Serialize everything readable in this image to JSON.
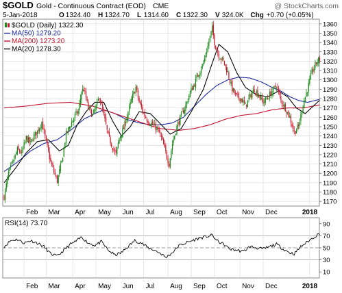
{
  "header": {
    "symbol": "$GOLD",
    "description": "Gold - Continuous Contract (EOD)",
    "exchange": "CME",
    "credit": "@ StockCharts.com",
    "date": "5-Jan-2018",
    "ohlc": [
      {
        "label": "O",
        "value": "1324.40"
      },
      {
        "label": "H",
        "value": "1324.70"
      },
      {
        "label": "L",
        "value": "1314.60"
      },
      {
        "label": "C",
        "value": "1322.30"
      },
      {
        "label": "V",
        "value": "324.0K"
      },
      {
        "label": "Chg",
        "value": "+0.70 (+0.05%)"
      }
    ]
  },
  "legend": [
    {
      "text": "$GOLD (Daily) 1322.30",
      "color": "#000000",
      "kind": "candle"
    },
    {
      "text": "MA(50) 1279.20",
      "color": "#1a2a9a",
      "kind": "line"
    },
    {
      "text": "MA(200) 1273.20",
      "color": "#c0102a",
      "kind": "line"
    },
    {
      "text": "MA(20) 1278.30",
      "color": "#000000",
      "kind": "line"
    }
  ],
  "colors": {
    "up": "#1a8a1a",
    "down": "#c81e2e",
    "ma50": "#1a2a9a",
    "ma200": "#c0102a",
    "ma20": "#000000",
    "rsi": "#000000",
    "grid": "#dcdcdc"
  },
  "chart_data": [
    {
      "type": "candlestick",
      "title": "$GOLD (Daily) 1322.30",
      "ylim": [
        1165,
        1365
      ],
      "y_ticks": [
        1170,
        1180,
        1190,
        1200,
        1210,
        1220,
        1230,
        1240,
        1250,
        1260,
        1270,
        1280,
        1290,
        1300,
        1310,
        1320,
        1330,
        1340,
        1350,
        1360
      ],
      "x_ticks": [
        "Feb",
        "Mar",
        "Apr",
        "May",
        "Jun",
        "Jul",
        "Aug",
        "Sep",
        "Oct",
        "Nov",
        "Dec",
        "2018"
      ],
      "grid": true,
      "legend_position": "top-left",
      "anchors": [
        [
          0,
          1175
        ],
        [
          4,
          1200
        ],
        [
          8,
          1212
        ],
        [
          12,
          1225
        ],
        [
          16,
          1222
        ],
        [
          20,
          1238
        ],
        [
          24,
          1232
        ],
        [
          26,
          1238
        ],
        [
          30,
          1245
        ],
        [
          34,
          1255
        ],
        [
          38,
          1233
        ],
        [
          42,
          1212
        ],
        [
          46,
          1198
        ],
        [
          48,
          1192
        ],
        [
          52,
          1212
        ],
        [
          56,
          1242
        ],
        [
          60,
          1252
        ],
        [
          64,
          1262
        ],
        [
          67,
          1266
        ],
        [
          70,
          1288
        ],
        [
          72,
          1290
        ],
        [
          76,
          1270
        ],
        [
          80,
          1262
        ],
        [
          84,
          1274
        ],
        [
          86,
          1282
        ],
        [
          90,
          1262
        ],
        [
          94,
          1240
        ],
        [
          98,
          1228
        ],
        [
          101,
          1220
        ],
        [
          104,
          1238
        ],
        [
          108,
          1248
        ],
        [
          112,
          1266
        ],
        [
          116,
          1282
        ],
        [
          119,
          1292
        ],
        [
          122,
          1276
        ],
        [
          126,
          1264
        ],
        [
          130,
          1256
        ],
        [
          134,
          1252
        ],
        [
          138,
          1248
        ],
        [
          142,
          1238
        ],
        [
          146,
          1222
        ],
        [
          149,
          1210
        ],
        [
          152,
          1232
        ],
        [
          156,
          1250
        ],
        [
          160,
          1262
        ],
        [
          164,
          1272
        ],
        [
          168,
          1287
        ],
        [
          172,
          1296
        ],
        [
          176,
          1308
        ],
        [
          180,
          1318
        ],
        [
          184,
          1336
        ],
        [
          186,
          1346
        ],
        [
          188,
          1355
        ],
        [
          190,
          1340
        ],
        [
          194,
          1326
        ],
        [
          198,
          1320
        ],
        [
          202,
          1308
        ],
        [
          206,
          1290
        ],
        [
          210,
          1282
        ],
        [
          214,
          1280
        ],
        [
          218,
          1272
        ],
        [
          222,
          1282
        ],
        [
          226,
          1290
        ],
        [
          230,
          1284
        ],
        [
          234,
          1276
        ],
        [
          238,
          1281
        ],
        [
          242,
          1288
        ],
        [
          246,
          1294
        ],
        [
          250,
          1278
        ],
        [
          254,
          1270
        ],
        [
          258,
          1260
        ],
        [
          262,
          1244
        ],
        [
          266,
          1250
        ],
        [
          270,
          1274
        ],
        [
          274,
          1290
        ],
        [
          278,
          1308
        ],
        [
          281,
          1316
        ],
        [
          283,
          1320
        ],
        [
          285,
          1322.3
        ]
      ],
      "series": [
        {
          "name": "MA(50)",
          "value": 1279.2,
          "points": [
            [
              0,
              1202
            ],
            [
              12,
              1212
            ],
            [
              24,
              1224
            ],
            [
              36,
              1232
            ],
            [
              48,
              1236
            ],
            [
              60,
              1246
            ],
            [
              72,
              1258
            ],
            [
              82,
              1264
            ],
            [
              90,
              1268
            ],
            [
              100,
              1264
            ],
            [
              110,
              1258
            ],
            [
              122,
              1254
            ],
            [
              132,
              1252
            ],
            [
              142,
              1252
            ],
            [
              152,
              1254
            ],
            [
              162,
              1260
            ],
            [
              172,
              1272
            ],
            [
              182,
              1284
            ],
            [
              192,
              1294
            ],
            [
              202,
              1300
            ],
            [
              212,
              1303
            ],
            [
              222,
              1302
            ],
            [
              232,
              1298
            ],
            [
              242,
              1292
            ],
            [
              250,
              1288
            ],
            [
              258,
              1282
            ],
            [
              266,
              1278
            ],
            [
              274,
              1276
            ],
            [
              285,
              1279.2
            ]
          ]
        },
        {
          "name": "MA(200)",
          "value": 1273.2,
          "points": [
            [
              0,
              1270
            ],
            [
              20,
              1272
            ],
            [
              40,
              1275
            ],
            [
              60,
              1276
            ],
            [
              80,
              1272
            ],
            [
              100,
              1264
            ],
            [
              120,
              1256
            ],
            [
              140,
              1248
            ],
            [
              158,
              1246
            ],
            [
              172,
              1248
            ],
            [
              186,
              1252
            ],
            [
              200,
              1258
            ],
            [
              214,
              1262
            ],
            [
              228,
              1264
            ],
            [
              242,
              1268
            ],
            [
              256,
              1270
            ],
            [
              270,
              1270
            ],
            [
              285,
              1273.2
            ]
          ]
        },
        {
          "name": "MA(20)",
          "value": 1278.3,
          "points": [
            [
              0,
              1190
            ],
            [
              10,
              1205
            ],
            [
              20,
              1222
            ],
            [
              30,
              1234
            ],
            [
              40,
              1236
            ],
            [
              50,
              1224
            ],
            [
              58,
              1230
            ],
            [
              66,
              1252
            ],
            [
              74,
              1266
            ],
            [
              82,
              1276
            ],
            [
              90,
              1276
            ],
            [
              98,
              1256
            ],
            [
              106,
              1240
            ],
            [
              114,
              1250
            ],
            [
              122,
              1266
            ],
            [
              132,
              1264
            ],
            [
              142,
              1252
            ],
            [
              150,
              1242
            ],
            [
              160,
              1248
            ],
            [
              170,
              1268
            ],
            [
              180,
              1290
            ],
            [
              188,
              1318
            ],
            [
              194,
              1338
            ],
            [
              202,
              1330
            ],
            [
              210,
              1308
            ],
            [
              218,
              1292
            ],
            [
              228,
              1284
            ],
            [
              238,
              1282
            ],
            [
              248,
              1288
            ],
            [
              256,
              1282
            ],
            [
              264,
              1270
            ],
            [
              272,
              1264
            ],
            [
              285,
              1278.3
            ]
          ]
        }
      ]
    },
    {
      "type": "line",
      "title": "RSI(14) 73.70",
      "value": 73.7,
      "ylim": [
        0,
        100
      ],
      "y_ticks": [
        10,
        30,
        50,
        70,
        90
      ],
      "reference_lines": [
        30,
        50,
        70
      ],
      "x_ticks": [
        "Feb",
        "Mar",
        "Apr",
        "May",
        "Jun",
        "Jul",
        "Aug",
        "Sep",
        "Oct",
        "Nov",
        "Dec",
        "2018"
      ],
      "points": [
        [
          0,
          52
        ],
        [
          6,
          62
        ],
        [
          12,
          64
        ],
        [
          18,
          58
        ],
        [
          24,
          62
        ],
        [
          30,
          58
        ],
        [
          36,
          52
        ],
        [
          42,
          40
        ],
        [
          48,
          36
        ],
        [
          54,
          46
        ],
        [
          60,
          56
        ],
        [
          66,
          62
        ],
        [
          70,
          68
        ],
        [
          76,
          58
        ],
        [
          82,
          54
        ],
        [
          88,
          60
        ],
        [
          94,
          46
        ],
        [
          100,
          38
        ],
        [
          106,
          42
        ],
        [
          112,
          52
        ],
        [
          118,
          62
        ],
        [
          124,
          58
        ],
        [
          130,
          50
        ],
        [
          136,
          46
        ],
        [
          142,
          40
        ],
        [
          146,
          34
        ],
        [
          152,
          42
        ],
        [
          158,
          54
        ],
        [
          164,
          58
        ],
        [
          170,
          62
        ],
        [
          176,
          66
        ],
        [
          182,
          68
        ],
        [
          188,
          71
        ],
        [
          192,
          62
        ],
        [
          198,
          56
        ],
        [
          204,
          48
        ],
        [
          210,
          46
        ],
        [
          216,
          44
        ],
        [
          222,
          52
        ],
        [
          228,
          50
        ],
        [
          234,
          48
        ],
        [
          240,
          52
        ],
        [
          246,
          56
        ],
        [
          252,
          48
        ],
        [
          258,
          42
        ],
        [
          262,
          40
        ],
        [
          268,
          52
        ],
        [
          274,
          60
        ],
        [
          280,
          68
        ],
        [
          285,
          73.7
        ]
      ]
    }
  ]
}
